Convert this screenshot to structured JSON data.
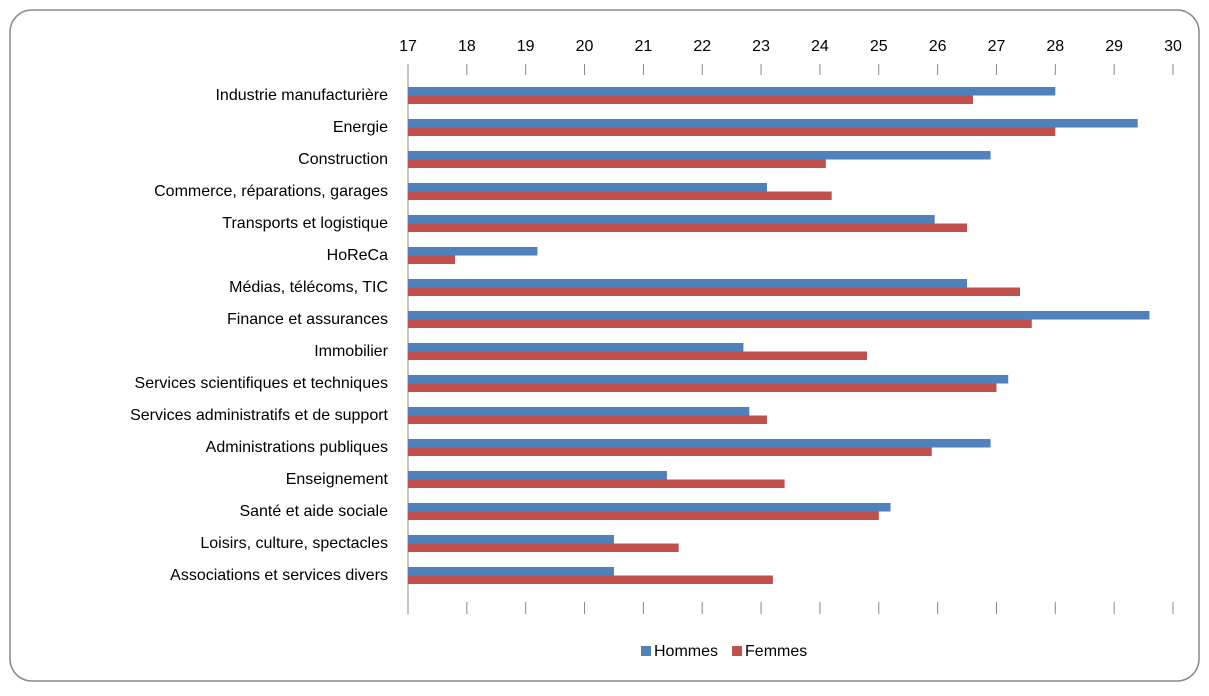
{
  "chart_data": {
    "type": "barh",
    "categories": [
      "Industrie manufacturière",
      "Energie",
      "Construction",
      "Commerce, réparations, garages",
      "Transports et logistique",
      "HoReCa",
      "Médias, télécoms, TIC",
      "Finance et assurances",
      "Immobilier",
      "Services scientifiques et techniques",
      "Services administratifs et de support",
      "Administrations publiques",
      "Enseignement",
      "Santé et aide sociale",
      "Loisirs, culture, spectacles",
      "Associations et services divers"
    ],
    "series": [
      {
        "name": "Hommes",
        "color": "#4f81bd",
        "values": [
          28.0,
          29.4,
          26.9,
          23.1,
          25.95,
          19.2,
          26.5,
          29.6,
          22.7,
          27.2,
          22.8,
          26.9,
          21.4,
          25.2,
          20.5,
          20.5
        ]
      },
      {
        "name": "Femmes",
        "color": "#c0504d",
        "values": [
          26.6,
          28.0,
          24.1,
          24.2,
          26.5,
          17.8,
          27.4,
          27.6,
          24.8,
          27.0,
          23.1,
          25.9,
          23.4,
          25.0,
          21.6,
          23.2
        ]
      }
    ],
    "xlim": [
      17,
      30
    ],
    "xticks": [
      17,
      18,
      19,
      20,
      21,
      22,
      23,
      24,
      25,
      26,
      27,
      28,
      29,
      30
    ],
    "legend": "bottom"
  }
}
